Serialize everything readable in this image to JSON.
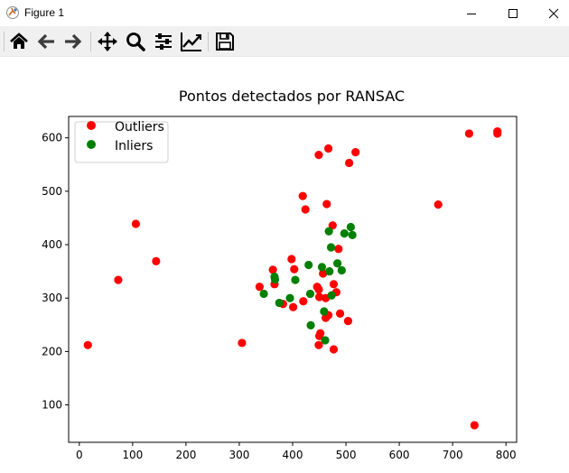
{
  "window": {
    "title": "Figure 1",
    "minimize": "—",
    "maximize": "☐",
    "close": "✕"
  },
  "toolbar": {
    "buttons": [
      {
        "name": "home-button",
        "icon": "home-icon"
      },
      {
        "name": "back-button",
        "icon": "arrow-left-icon"
      },
      {
        "name": "forward-button",
        "icon": "arrow-right-icon"
      },
      {
        "name": "pan-button",
        "icon": "move-icon"
      },
      {
        "name": "zoom-button",
        "icon": "magnifier-icon"
      },
      {
        "name": "subplots-button",
        "icon": "sliders-icon"
      },
      {
        "name": "edit-axis-button",
        "icon": "line-chart-icon"
      },
      {
        "name": "save-button",
        "icon": "floppy-disk-icon"
      }
    ]
  },
  "colors": {
    "outliers": "#ff0000",
    "inliers": "#008000"
  },
  "chart_data": {
    "type": "scatter",
    "title": "Pontos detectados por RANSAC",
    "xlabel": "",
    "ylabel": "",
    "xlim": [
      -20,
      820
    ],
    "ylim": [
      30,
      640
    ],
    "xticks": [
      0,
      100,
      200,
      300,
      400,
      500,
      600,
      700,
      800
    ],
    "yticks": [
      100,
      200,
      300,
      400,
      500,
      600
    ],
    "grid": false,
    "legend": "upper-left",
    "series": [
      {
        "name": "Outliers",
        "color": "#ff0000",
        "points": [
          [
            16,
            212
          ],
          [
            73,
            334
          ],
          [
            106,
            439
          ],
          [
            144,
            369
          ],
          [
            305,
            216
          ],
          [
            338,
            321
          ],
          [
            363,
            353
          ],
          [
            366,
            326
          ],
          [
            382,
            289
          ],
          [
            398,
            373
          ],
          [
            403,
            354
          ],
          [
            401,
            283
          ],
          [
            420,
            294
          ],
          [
            419,
            491
          ],
          [
            424,
            466
          ],
          [
            446,
            321
          ],
          [
            449,
            212
          ],
          [
            450,
            229
          ],
          [
            452,
            234
          ],
          [
            450,
            302
          ],
          [
            449,
            568
          ],
          [
            449,
            316
          ],
          [
            457,
            346
          ],
          [
            462,
            263
          ],
          [
            462,
            300
          ],
          [
            464,
            476
          ],
          [
            467,
            580
          ],
          [
            475,
            436
          ],
          [
            477,
            204
          ],
          [
            477,
            326
          ],
          [
            482,
            311
          ],
          [
            486,
            392
          ],
          [
            489,
            271
          ],
          [
            504,
            257
          ],
          [
            506,
            553
          ],
          [
            518,
            573
          ],
          [
            673,
            475
          ],
          [
            731,
            608
          ],
          [
            741,
            62
          ],
          [
            784,
            612
          ],
          [
            784,
            608
          ],
          [
            467,
            268
          ]
        ]
      },
      {
        "name": "Inliers",
        "color": "#008000",
        "points": [
          [
            346,
            308
          ],
          [
            366,
            340
          ],
          [
            367,
            335
          ],
          [
            375,
            291
          ],
          [
            395,
            300
          ],
          [
            405,
            334
          ],
          [
            430,
            362
          ],
          [
            433,
            308
          ],
          [
            434,
            249
          ],
          [
            455,
            358
          ],
          [
            459,
            275
          ],
          [
            461,
            221
          ],
          [
            468,
            425
          ],
          [
            469,
            350
          ],
          [
            472,
            395
          ],
          [
            473,
            305
          ],
          [
            484,
            365
          ],
          [
            492,
            352
          ],
          [
            497,
            421
          ],
          [
            509,
            433
          ],
          [
            512,
            418
          ]
        ]
      }
    ]
  }
}
